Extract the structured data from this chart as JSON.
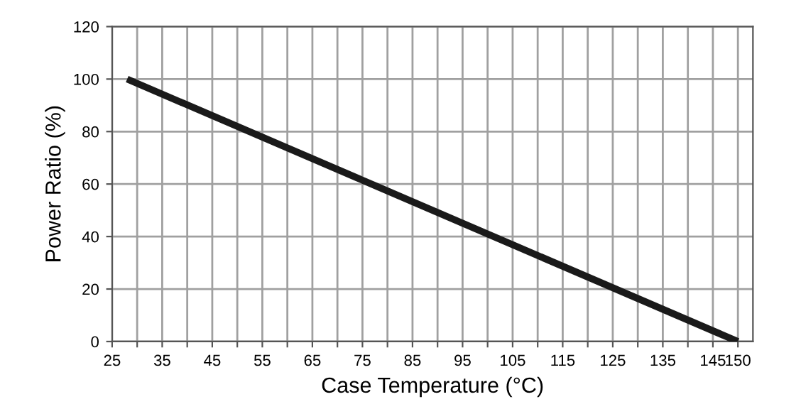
{
  "chart_data": {
    "type": "line",
    "xlabel": "Case Temperature (°C)",
    "ylabel": "Power Ratio (%)",
    "x": [
      28,
      150
    ],
    "series": [
      {
        "color": "#1a1a1a",
        "values": [
          100,
          0
        ]
      }
    ],
    "xlim": [
      25,
      153
    ],
    "ylim": [
      0,
      120
    ],
    "xticks": [
      25,
      {
        "value": 30,
        "label": null
      },
      35,
      {
        "value": 40,
        "label": null
      },
      45,
      {
        "value": 50,
        "label": null
      },
      55,
      {
        "value": 60,
        "label": null
      },
      65,
      {
        "value": 70,
        "label": null
      },
      75,
      {
        "value": 80,
        "label": null
      },
      85,
      {
        "value": 90,
        "label": null
      },
      95,
      {
        "value": 100,
        "label": null
      },
      105,
      {
        "value": 110,
        "label": null
      },
      115,
      {
        "value": 120,
        "label": null
      },
      125,
      {
        "value": 130,
        "label": null
      },
      135,
      {
        "value": 140,
        "label": null
      },
      145,
      150
    ],
    "yticks": [
      0,
      20,
      40,
      60,
      80,
      100,
      120
    ],
    "grid": true,
    "marker": "none",
    "line_style": "solid"
  }
}
